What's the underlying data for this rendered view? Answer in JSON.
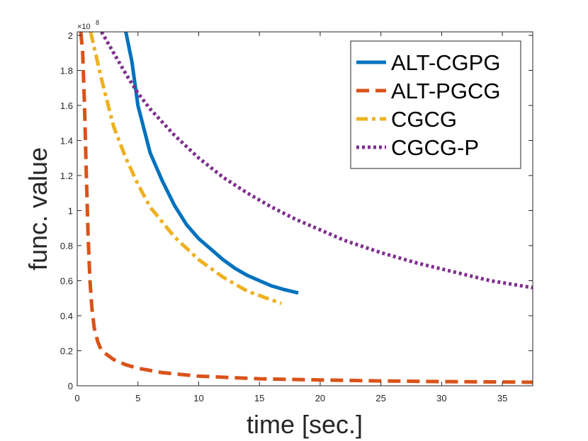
{
  "chart_data": {
    "type": "line",
    "xlabel": "time [sec.]",
    "ylabel": "func. value",
    "xlim": [
      0,
      37.5
    ],
    "ylim": [
      0,
      2.02
    ],
    "xticks": [
      0,
      5,
      10,
      15,
      20,
      25,
      30,
      35
    ],
    "yticks": [
      0,
      0.2,
      0.4,
      0.6,
      0.8,
      1,
      1.2,
      1.4,
      1.6,
      1.8,
      2
    ],
    "ytick_labels": [
      "0",
      "0.2",
      "0.4",
      "0.6",
      "0.8",
      "1",
      "1.2",
      "1.4",
      "1.6",
      "1.8",
      "2"
    ],
    "yexp_base": "×10",
    "yexp_power": "8",
    "grid": false,
    "legend_position": "top-right",
    "series": [
      {
        "name": "ALT-CGPG",
        "color": "#0072BD",
        "style": "solid",
        "x": [
          4.0,
          4.5,
          5.0,
          6.0,
          7.0,
          8.0,
          9.0,
          10.0,
          11.0,
          12.0,
          13.0,
          14.0,
          15.0,
          16.0,
          17.0,
          18.2
        ],
        "y": [
          2.02,
          1.85,
          1.6,
          1.33,
          1.17,
          1.03,
          0.92,
          0.84,
          0.78,
          0.72,
          0.67,
          0.63,
          0.6,
          0.57,
          0.55,
          0.53
        ]
      },
      {
        "name": "ALT-PGCG",
        "color": "#D95319",
        "style": "dashed",
        "x": [
          0.3,
          0.45,
          0.6,
          0.75,
          0.9,
          1.05,
          1.2,
          1.4,
          1.7,
          2.0,
          3.0,
          4.0,
          5.0,
          7.0,
          10.0,
          15.0,
          20.0,
          25.0,
          30.0,
          35.0,
          37.5
        ],
        "y": [
          2.02,
          1.9,
          1.6,
          1.2,
          0.85,
          0.6,
          0.45,
          0.33,
          0.25,
          0.2,
          0.15,
          0.12,
          0.1,
          0.075,
          0.055,
          0.04,
          0.033,
          0.028,
          0.024,
          0.022,
          0.02
        ]
      },
      {
        "name": "CGCG",
        "color": "#EDB120",
        "style": "dashdot",
        "x": [
          1.1,
          2.0,
          3.0,
          4.0,
          5.0,
          6.0,
          8.0,
          10.0,
          12.0,
          14.0,
          16.8
        ],
        "y": [
          2.02,
          1.75,
          1.48,
          1.3,
          1.15,
          1.02,
          0.85,
          0.72,
          0.62,
          0.54,
          0.47
        ]
      },
      {
        "name": "CGCG-P",
        "color": "#7E2F8E",
        "style": "dotted",
        "x": [
          2.0,
          3.0,
          4.0,
          5.0,
          6.0,
          8.0,
          10.0,
          12.0,
          14.0,
          16.0,
          18.0,
          20.0,
          22.0,
          25.0,
          28.0,
          31.0,
          34.0,
          37.5
        ],
        "y": [
          2.02,
          1.9,
          1.78,
          1.67,
          1.58,
          1.43,
          1.3,
          1.19,
          1.1,
          1.02,
          0.95,
          0.89,
          0.83,
          0.76,
          0.7,
          0.65,
          0.6,
          0.56
        ]
      }
    ]
  }
}
